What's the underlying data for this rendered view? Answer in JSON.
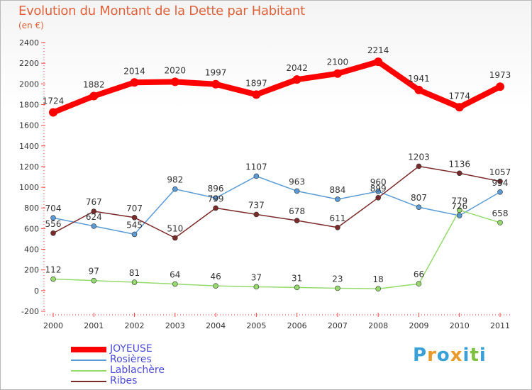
{
  "header": {
    "title": "Evolution du Montant de la Dette par Habitant",
    "subtitle": "(en €)"
  },
  "brand": {
    "letters": [
      "P",
      "r",
      "o",
      "x",
      "i",
      "t",
      "i"
    ],
    "colors": [
      "#3aa0d8",
      "#e89a2c",
      "#3aa0d8",
      "#e89a2c",
      "#3aa0d8",
      "#7ec041",
      "#3aa0d8"
    ]
  },
  "chart_data": {
    "type": "line",
    "title": "Evolution du Montant de la Dette par Habitant",
    "subtitle": "(en €)",
    "x": [
      "2000",
      "2001",
      "2002",
      "2003",
      "2004",
      "2005",
      "2006",
      "2007",
      "2008",
      "2009",
      "2010",
      "2011"
    ],
    "ylim": [
      -200,
      2400
    ],
    "yticks": [
      -200,
      0,
      200,
      400,
      600,
      800,
      1000,
      1200,
      1400,
      1600,
      1800,
      2000,
      2200,
      2400
    ],
    "grid": false,
    "legend": "bottom-left",
    "series": [
      {
        "name": "JOYEUSE",
        "color": "#ff0000",
        "values": [
          1724,
          1882,
          2014,
          2020,
          1997,
          1897,
          2042,
          2100,
          2214,
          1941,
          1774,
          1973
        ]
      },
      {
        "name": "Rosières",
        "color": "#5b9bd5",
        "values": [
          704,
          624,
          545,
          982,
          896,
          1107,
          963,
          884,
          960,
          807,
          726,
          954
        ]
      },
      {
        "name": "Lablachère",
        "color": "#96d96c",
        "values": [
          112,
          97,
          81,
          64,
          46,
          37,
          31,
          23,
          18,
          66,
          779,
          658
        ]
      },
      {
        "name": "Ribes",
        "color": "#7b2a2a",
        "values": [
          556,
          767,
          707,
          510,
          799,
          737,
          678,
          611,
          899,
          1203,
          1136,
          1057
        ]
      }
    ]
  }
}
